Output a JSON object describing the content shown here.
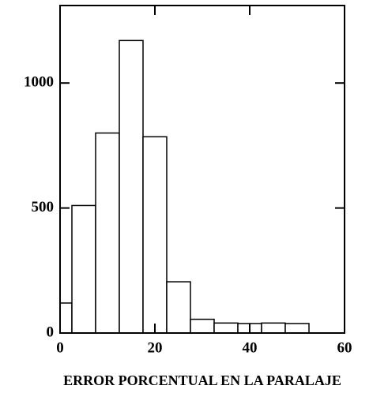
{
  "chart_data": {
    "type": "histogram",
    "xlabel": "ERROR PORCENTUAL EN LA PARALAJE",
    "bins": [
      0,
      2.5,
      7.5,
      12.5,
      17.5,
      22.5,
      27.5,
      32.5,
      37.5,
      42.5,
      47.5,
      52.5
    ],
    "values": [
      120,
      510,
      800,
      1170,
      785,
      205,
      55,
      40,
      38,
      40,
      38
    ],
    "color": "#ffffff",
    "xlim": [
      0,
      60
    ],
    "xticks": [
      0,
      20,
      40,
      60
    ],
    "ylim": [
      0,
      1310
    ],
    "yticks": [
      0,
      500,
      1000
    ],
    "grid": false
  }
}
